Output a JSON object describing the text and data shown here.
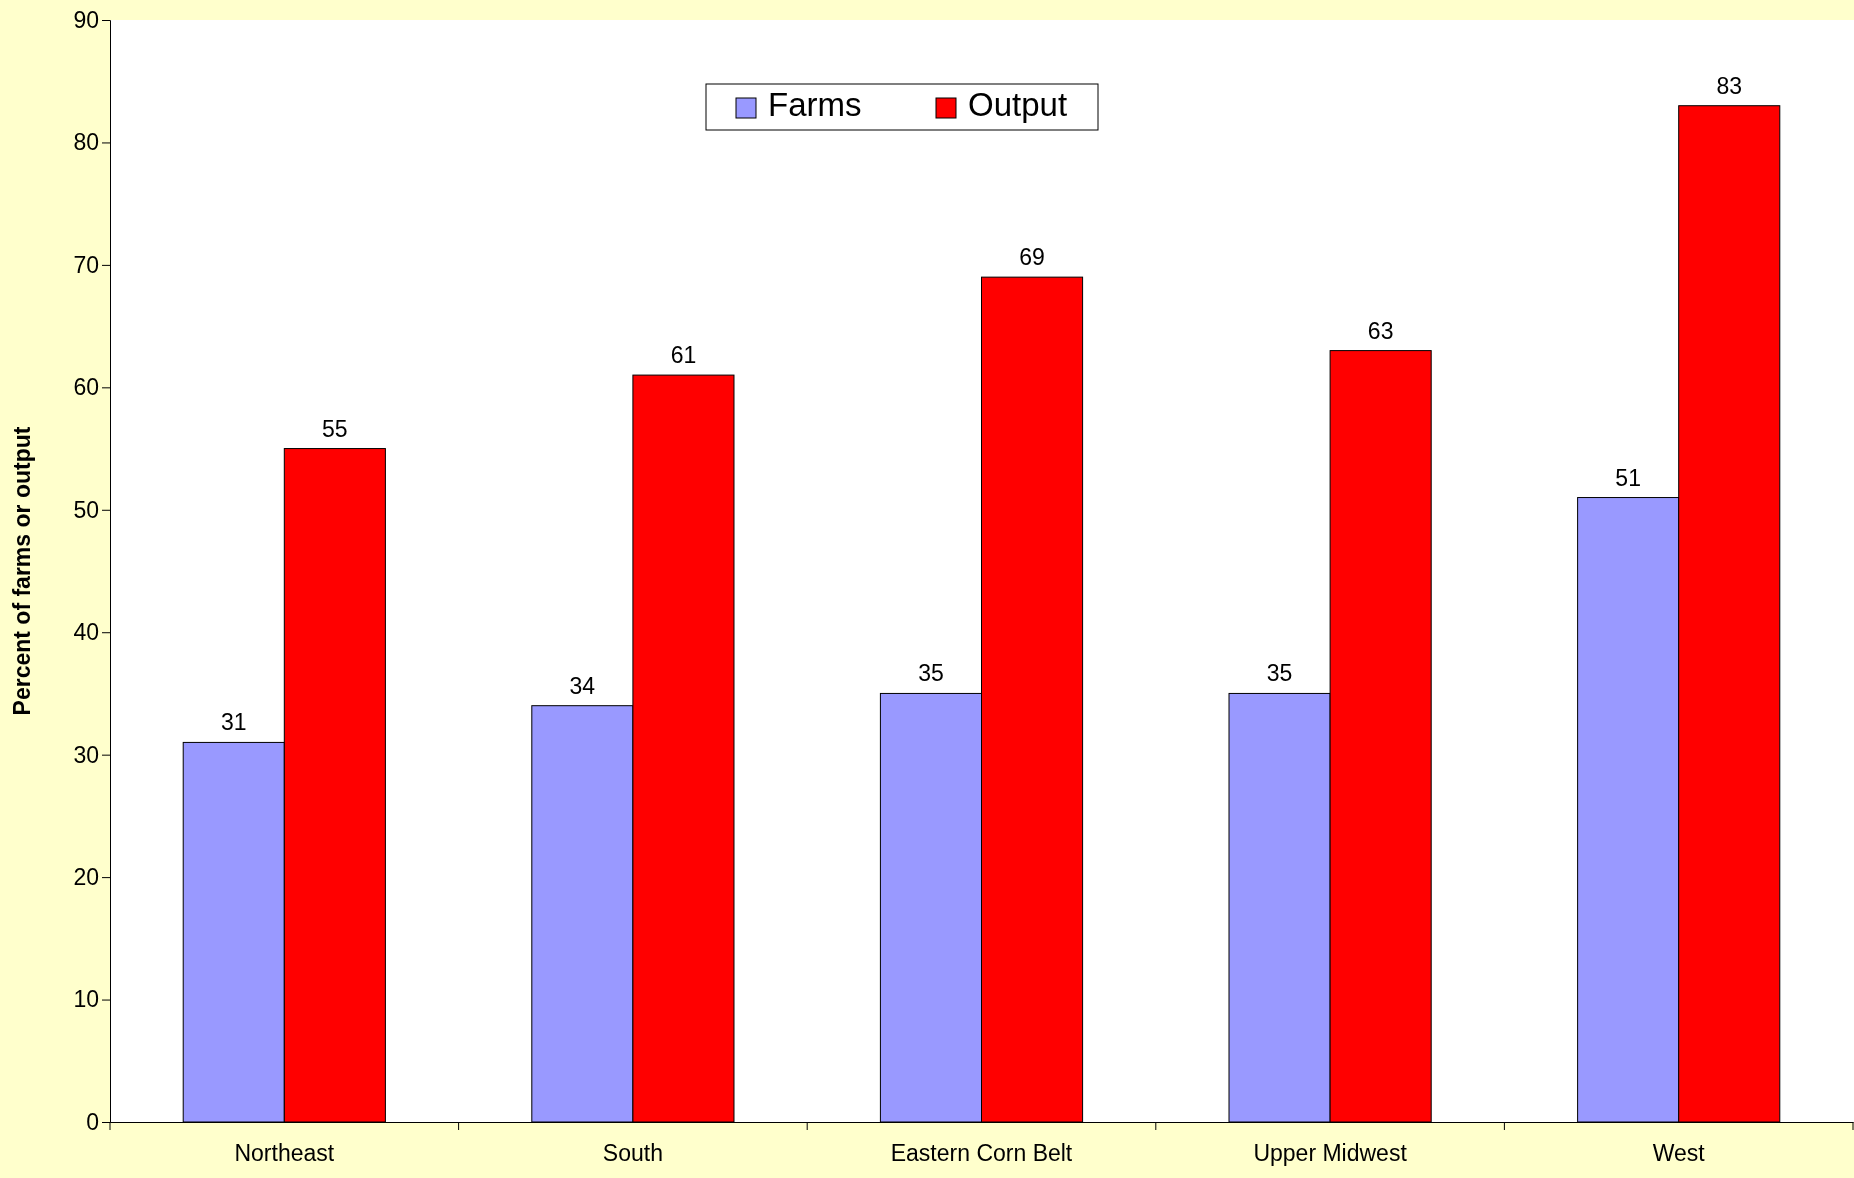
{
  "chart_data": {
    "type": "bar",
    "ylabel": "Percent of farms or output",
    "categories": [
      "Northeast",
      "South",
      "Eastern Corn Belt",
      "Upper Midwest",
      "West"
    ],
    "series": [
      {
        "name": "Farms",
        "color": "#9999ff",
        "values": [
          31,
          34,
          35,
          35,
          51
        ]
      },
      {
        "name": "Output",
        "color": "#ff0000",
        "values": [
          55,
          61,
          69,
          63,
          83
        ]
      }
    ],
    "ylim": [
      0,
      90
    ],
    "yticks": [
      0,
      10,
      20,
      30,
      40,
      50,
      60,
      70,
      80,
      90
    ],
    "data_labels": true,
    "legend": "top",
    "grid": false
  }
}
